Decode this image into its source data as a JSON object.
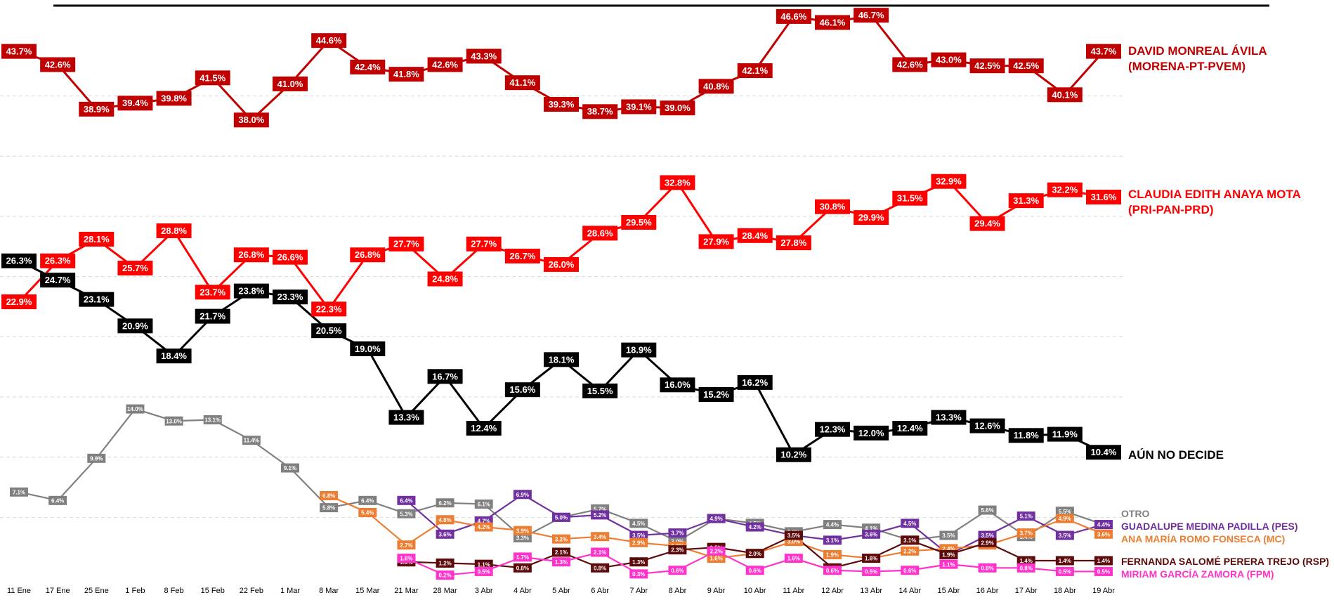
{
  "chart_data": {
    "type": "line",
    "categories": [
      "11 Ene",
      "17 Ene",
      "25 Ene",
      "1 Feb",
      "8 Feb",
      "15 Feb",
      "22 Feb",
      "1 Mar",
      "8 Mar",
      "15 Mar",
      "21 Mar",
      "28 Mar",
      "3 Abr",
      "4 Abr",
      "5 Abr",
      "6 Abr",
      "7 Abr",
      "8 Abr",
      "9 Abr",
      "10 Abr",
      "11 Abr",
      "12 Abr",
      "13 Abr",
      "14 Abr",
      "15 Abr",
      "16 Abr",
      "17 Abr",
      "18 Abr",
      "19 Abr"
    ],
    "ylim": [
      0,
      47.5
    ],
    "yticks": [
      5,
      10,
      15,
      20,
      25,
      30,
      35,
      40
    ],
    "grid": true,
    "series": [
      {
        "name": "DAVID MONREAL ÁVILA (MORENA-PT-PVEM)",
        "color": "#c00000",
        "values": [
          43.7,
          42.6,
          38.9,
          39.4,
          39.8,
          41.5,
          38.0,
          41.0,
          44.6,
          42.4,
          41.8,
          42.6,
          43.3,
          41.1,
          39.3,
          38.7,
          39.1,
          39.0,
          40.8,
          42.1,
          46.6,
          46.1,
          46.7,
          42.6,
          43.0,
          42.5,
          42.5,
          40.1,
          43.7
        ],
        "value_labels": [
          "43.7%",
          "42.6%",
          "38.9%",
          "39.4%",
          "39.8%",
          "41.5%",
          "38.0%",
          "41.0%",
          "44.6%",
          "42.4%",
          "41.8%",
          "42.6%",
          "43.3%",
          "41.1%",
          "39.3%",
          "38.7%",
          "39.1%",
          "39.0%",
          "40.8%",
          "42.1%",
          "46.6%",
          "46.1%",
          "46.7%",
          "42.6%",
          "43.0%",
          "42.5%",
          "42.5%",
          "40.1%",
          "43.7%"
        ]
      },
      {
        "name": "CLAUDIA EDITH ANAYA MOTA (PRI-PAN-PRD)",
        "color": "#ff0000",
        "values": [
          22.9,
          26.3,
          28.1,
          25.7,
          28.8,
          23.7,
          26.8,
          26.6,
          22.3,
          26.8,
          27.7,
          24.8,
          27.7,
          26.7,
          26.0,
          28.6,
          29.5,
          32.8,
          27.9,
          28.4,
          27.8,
          30.8,
          29.9,
          31.5,
          32.9,
          29.4,
          31.3,
          32.2,
          31.6
        ],
        "value_labels": [
          "22.9%",
          "26.3%",
          "28.1%",
          "25.7%",
          "28.8%",
          "23.7%",
          "26.8%",
          "26.6%",
          "22.3%",
          "26.8%",
          "27.7%",
          "24.8%",
          "27.7%",
          "26.7%",
          "26.0%",
          "28.6%",
          "29.5%",
          "32.8%",
          "27.9%",
          "28.4%",
          "27.8%",
          "30.8%",
          "29.9%",
          "31.5%",
          "32.9%",
          "29.4%",
          "31.3%",
          "32.2%",
          "31.6%"
        ]
      },
      {
        "name": "AÚN NO DECIDE",
        "color": "#000000",
        "values": [
          26.3,
          24.7,
          23.1,
          20.9,
          18.4,
          21.7,
          23.8,
          23.3,
          20.5,
          19.0,
          13.3,
          16.7,
          12.4,
          15.6,
          18.1,
          15.5,
          18.9,
          16.0,
          15.2,
          16.2,
          10.2,
          12.3,
          12.0,
          12.4,
          13.3,
          12.6,
          11.8,
          11.9,
          10.4
        ],
        "value_labels": [
          "26.3%",
          "24.7%",
          "23.1%",
          "20.9%",
          "18.4%",
          "21.7%",
          "23.8%",
          "23.3%",
          "20.5%",
          "19.0%",
          "13.3%",
          "16.7%",
          "12.4%",
          "15.6%",
          "18.1%",
          "15.5%",
          "18.9%",
          "16.0%",
          "15.2%",
          "16.2%",
          "10.2%",
          "12.3%",
          "12.0%",
          "12.4%",
          "13.3%",
          "12.6%",
          "11.8%",
          "11.9%",
          "10.4%"
        ]
      },
      {
        "name": "OTRO",
        "color": "#808080",
        "values": [
          7.1,
          6.4,
          9.9,
          14.0,
          13.0,
          13.1,
          11.4,
          9.1,
          5.8,
          6.4,
          5.3,
          6.2,
          6.1,
          3.3,
          5.0,
          5.7,
          4.5,
          3.0,
          4.9,
          4.5,
          3.8,
          4.4,
          4.1,
          3.1,
          3.5,
          5.6,
          3.4,
          5.5,
          4.4
        ],
        "value_labels": [
          "7.1%",
          "6.4%",
          "9.9%",
          "14.0%",
          "13.0%",
          "13.1%",
          "11.4%",
          "9.1%",
          "5.8%",
          "6.4%",
          "5.3%",
          "6.2%",
          "6.1%",
          "3.3%",
          "5.0%",
          "5.7%",
          "4.5%",
          "3.0%",
          "4.9%",
          "4.5%",
          "3.8%",
          "4.4%",
          "4.1%",
          "3.1%",
          "3.5%",
          "5.6%",
          "3.4%",
          "5.5%",
          "4.4%"
        ]
      },
      {
        "name": "GUADALUPE MEDINA PADILLA (PES)",
        "color": "#7030a0",
        "values": [
          null,
          null,
          null,
          null,
          null,
          null,
          null,
          null,
          null,
          null,
          6.4,
          3.6,
          4.7,
          6.9,
          5.0,
          5.2,
          3.5,
          3.7,
          4.9,
          4.2,
          3.5,
          3.1,
          3.6,
          4.5,
          1.9,
          3.5,
          5.1,
          3.5,
          4.4
        ],
        "value_labels": [
          null,
          null,
          null,
          null,
          null,
          null,
          null,
          null,
          null,
          null,
          "6.4%",
          "3.6%",
          "4.7%",
          "6.9%",
          "5.0%",
          "5.2%",
          "3.5%",
          "3.7%",
          "4.9%",
          "4.2%",
          "3.5%",
          "3.1%",
          "3.6%",
          "4.5%",
          "1.9%",
          "3.5%",
          "5.1%",
          "3.5%",
          "4.4%"
        ]
      },
      {
        "name": "ANA MARÍA ROMO FONSECA (MC)",
        "color": "#ed7d31",
        "values": [
          null,
          null,
          null,
          null,
          null,
          null,
          null,
          null,
          6.8,
          5.4,
          2.7,
          4.8,
          4.2,
          3.9,
          3.2,
          3.4,
          2.9,
          2.6,
          1.6,
          2.0,
          3.0,
          1.9,
          1.6,
          2.2,
          2.4,
          2.7,
          3.7,
          4.9,
          3.6
        ],
        "value_labels": [
          null,
          null,
          null,
          null,
          null,
          null,
          null,
          null,
          "6.8%",
          "5.4%",
          "2.7%",
          "4.8%",
          "4.2%",
          "3.9%",
          "3.2%",
          "3.4%",
          "2.9%",
          "2.6%",
          "1.6%",
          "2.0%",
          "3.0%",
          "1.9%",
          "1.6%",
          "2.2%",
          "2.4%",
          "2.7%",
          "3.7%",
          "4.9%",
          "3.6%"
        ]
      },
      {
        "name": "FERNANDA SALOMÉ PERERA TREJO (RSP)",
        "color": "#5c0a0a",
        "values": [
          null,
          null,
          null,
          null,
          null,
          null,
          null,
          null,
          null,
          null,
          1.3,
          1.2,
          1.1,
          0.8,
          2.1,
          0.8,
          1.3,
          2.3,
          2.5,
          2.0,
          3.5,
          0.8,
          1.6,
          3.1,
          1.9,
          2.9,
          1.4,
          1.4,
          1.4
        ],
        "value_labels": [
          null,
          null,
          null,
          null,
          null,
          null,
          null,
          null,
          null,
          null,
          "1.3%",
          "1.2%",
          "1.1%",
          "0.8%",
          "2.1%",
          "0.8%",
          "1.3%",
          "2.3%",
          "2.5%",
          "2.0%",
          "3.5%",
          "0.8%",
          "1.6%",
          "3.1%",
          "1.9%",
          "2.9%",
          "1.4%",
          "1.4%",
          "1.4%"
        ]
      },
      {
        "name": "MIRIAM GARCÍA ZAMORA (FPM)",
        "color": "#ff33cc",
        "values": [
          null,
          null,
          null,
          null,
          null,
          null,
          null,
          null,
          null,
          null,
          1.6,
          0.2,
          0.5,
          1.7,
          1.3,
          2.1,
          0.3,
          0.6,
          2.2,
          0.6,
          1.6,
          0.6,
          0.5,
          0.6,
          1.1,
          0.8,
          0.8,
          0.5,
          0.5
        ],
        "value_labels": [
          null,
          null,
          null,
          null,
          null,
          null,
          null,
          null,
          null,
          null,
          "1.6%",
          "0.2%",
          "0.5%",
          "1.7%",
          "1.3%",
          "2.1%",
          "0.3%",
          "0.6%",
          "2.2%",
          "0.6%",
          "1.6%",
          "0.6%",
          "0.5%",
          "0.6%",
          "1.1%",
          "0.8%",
          "0.8%",
          "0.5%",
          "0.5%"
        ]
      }
    ]
  }
}
